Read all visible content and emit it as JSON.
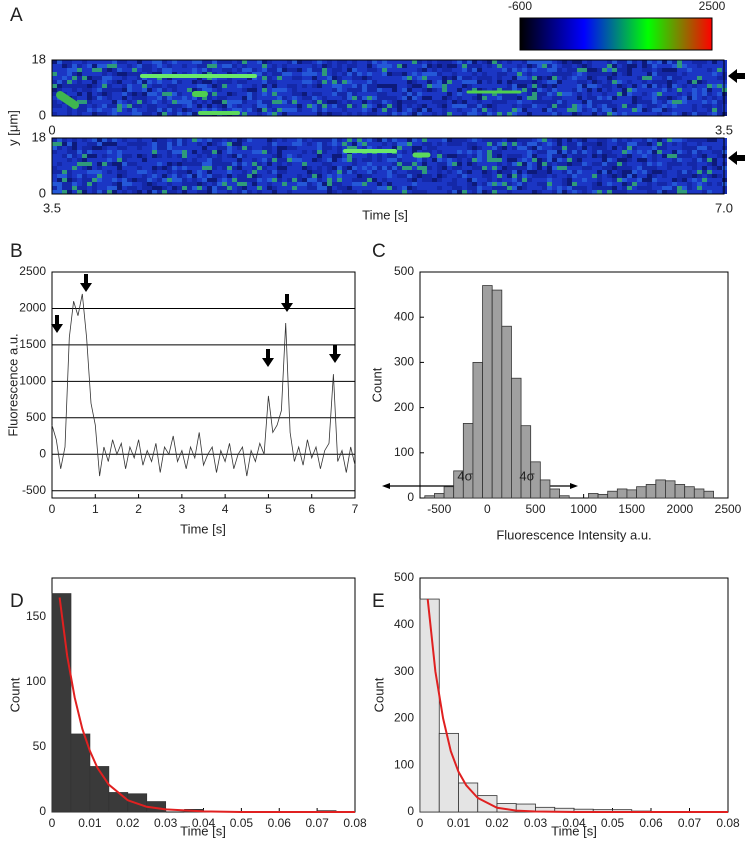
{
  "chart_data": [
    {
      "type": "kymograph",
      "panel": "A",
      "ylabel": "y [μm]",
      "xlim": [
        0,
        3.5
      ],
      "xticks": [
        0,
        3.5
      ],
      "ylim": [
        0,
        18
      ],
      "yticks": [
        0,
        18
      ],
      "clim": [
        -600,
        2500
      ],
      "cticks": [
        -600,
        2500
      ],
      "colormap": [
        "#000000",
        "#0000ff",
        "#00ff00",
        "#ff0000"
      ]
    },
    {
      "type": "kymograph",
      "xlabel": "Time [s]",
      "xlim": [
        3.5,
        7
      ],
      "xticks": [
        3.5,
        {
          "value": 7,
          "label": "7.0"
        }
      ],
      "ylim": [
        0,
        18
      ],
      "yticks": [
        0,
        18
      ]
    },
    {
      "type": "line",
      "panel": "B",
      "xlabel": "Time [s]",
      "ylabel": "Fluorescence a.u.",
      "color": "#333333",
      "grid": true,
      "xlim": [
        0,
        7
      ],
      "xticks": [
        0,
        1,
        2,
        3,
        4,
        5,
        6,
        7
      ],
      "ylim": [
        -600,
        2500
      ],
      "yticks": [
        -500,
        0,
        500,
        1000,
        1500,
        2000,
        2500
      ],
      "x": [
        0,
        0.1,
        0.2,
        0.3,
        0.4,
        0.5,
        0.6,
        0.7,
        0.8,
        0.9,
        1,
        1.1,
        1.2,
        1.3,
        1.4,
        1.5,
        1.6,
        1.7,
        1.8,
        1.9,
        2,
        2.1,
        2.2,
        2.3,
        2.4,
        2.5,
        2.6,
        2.7,
        2.8,
        2.9,
        3,
        3.1,
        3.2,
        3.3,
        3.4,
        3.5,
        3.6,
        3.7,
        3.8,
        3.9,
        4,
        4.1,
        4.2,
        4.3,
        4.4,
        4.5,
        4.6,
        4.7,
        4.8,
        4.9,
        5,
        5.1,
        5.2,
        5.3,
        5.4,
        5.5,
        5.6,
        5.7,
        5.8,
        5.9,
        6,
        6.1,
        6.2,
        6.3,
        6.4,
        6.5,
        6.6,
        6.7,
        6.8,
        6.9,
        7
      ],
      "values": [
        400,
        200,
        -200,
        100,
        1600,
        2100,
        1900,
        2200,
        1600,
        700,
        400,
        -300,
        100,
        -100,
        200,
        0,
        150,
        -200,
        100,
        -50,
        200,
        -150,
        50,
        -100,
        150,
        -250,
        100,
        0,
        250,
        -100,
        50,
        -200,
        100,
        -50,
        300,
        -150,
        0,
        100,
        -250,
        50,
        -100,
        150,
        -200,
        0,
        100,
        -300,
        50,
        -100,
        150,
        0,
        800,
        300,
        400,
        600,
        1800,
        300,
        -100,
        100,
        -150,
        200,
        -50,
        100,
        -200,
        50,
        150,
        1100,
        -100,
        50,
        -250,
        100,
        -150
      ]
    },
    {
      "type": "histogram",
      "panel": "C",
      "xlabel": "Fluorescence Intensity a.u.",
      "ylabel": "Count",
      "color": "#a0a0a0",
      "annotations": [
        "4σ",
        "4σ"
      ],
      "xlim": [
        -700,
        2500
      ],
      "xticks": [
        -500,
        0,
        500,
        1000,
        1500,
        2000,
        2500
      ],
      "ylim": [
        0,
        500
      ],
      "yticks": [
        0,
        100,
        200,
        300,
        400,
        500
      ],
      "bins": [
        -650,
        -550,
        -450,
        -350,
        -250,
        -150,
        -50,
        50,
        150,
        250,
        350,
        450,
        550,
        650,
        750,
        850,
        950,
        1050,
        1150,
        1250,
        1350,
        1450,
        1550,
        1650,
        1750,
        1850,
        1950,
        2050,
        2150,
        2250,
        2350
      ],
      "values": [
        5,
        10,
        25,
        60,
        165,
        300,
        470,
        460,
        380,
        265,
        160,
        80,
        40,
        20,
        5,
        0,
        0,
        10,
        8,
        15,
        20,
        18,
        25,
        30,
        40,
        38,
        30,
        25,
        20,
        15
      ]
    },
    {
      "type": "histogram",
      "panel": "D",
      "xlabel": "Time [s]",
      "ylabel": "Count",
      "color": "#3a3a3a",
      "xlim": [
        0,
        0.08
      ],
      "xticks": [
        0,
        0.01,
        0.02,
        0.03,
        0.04,
        0.05,
        0.06,
        0.07,
        0.08
      ],
      "ylim": [
        0,
        180
      ],
      "yticks": [
        0,
        50,
        100,
        150
      ],
      "bins": [
        0,
        0.005,
        0.01,
        0.015,
        0.02,
        0.025,
        0.03,
        0.035,
        0.04,
        0.045,
        0.05,
        0.055,
        0.06,
        0.065,
        0.07,
        0.075,
        0.08
      ],
      "values": [
        168,
        60,
        35,
        15,
        14,
        8,
        0,
        2,
        0,
        0,
        0,
        0,
        0,
        0,
        1,
        0
      ],
      "fit": {
        "color": "#e02020",
        "x": [
          0.002,
          0.004,
          0.006,
          0.008,
          0.01,
          0.012,
          0.015,
          0.02,
          0.025,
          0.03,
          0.04,
          0.05,
          0.08
        ],
        "y": [
          165,
          120,
          88,
          64,
          47,
          34,
          21,
          9,
          4,
          2,
          0.5,
          0,
          0
        ]
      }
    },
    {
      "type": "histogram",
      "panel": "E",
      "xlabel": "Time [s]",
      "ylabel": "Count",
      "color": "#e4e4e4",
      "xlim": [
        0,
        0.08
      ],
      "xticks": [
        0,
        0.01,
        0.02,
        0.03,
        0.04,
        0.05,
        0.06,
        0.07,
        0.08
      ],
      "ylim": [
        0,
        500
      ],
      "yticks": [
        0,
        100,
        200,
        300,
        400,
        500
      ],
      "bins": [
        0,
        0.005,
        0.01,
        0.015,
        0.02,
        0.025,
        0.03,
        0.035,
        0.04,
        0.045,
        0.05,
        0.055,
        0.06,
        0.065,
        0.07,
        0.075,
        0.08
      ],
      "values": [
        455,
        168,
        62,
        35,
        18,
        17,
        10,
        8,
        6,
        5,
        5,
        2,
        1,
        1,
        0,
        0
      ],
      "fit": {
        "color": "#e02020",
        "x": [
          0.002,
          0.004,
          0.006,
          0.008,
          0.01,
          0.012,
          0.015,
          0.02,
          0.025,
          0.03,
          0.04,
          0.05,
          0.08
        ],
        "y": [
          455,
          300,
          200,
          130,
          86,
          57,
          30,
          9,
          3,
          1,
          0,
          0,
          0
        ]
      }
    }
  ]
}
